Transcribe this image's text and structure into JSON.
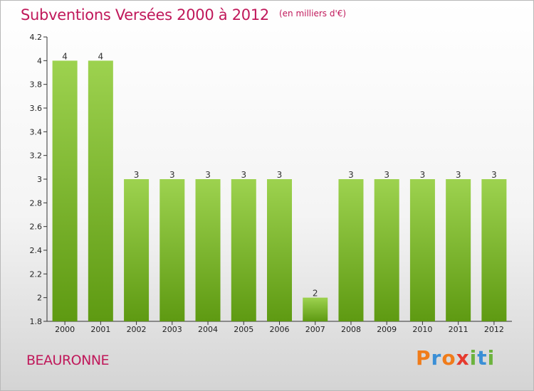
{
  "header": {
    "title": "Subventions Versées 2000 à 2012",
    "subtitle": "(en milliers d'€)"
  },
  "footer": {
    "commune": "BEAURONNE",
    "logo_text": "Proxiti"
  },
  "colors": {
    "title": "#c0185a",
    "bar_light": "#9dd24f",
    "bar_dark": "#5e9a12"
  },
  "chart_data": {
    "type": "bar",
    "title": "Subventions Versées 2000 à 2012",
    "subtitle": "(en milliers d'€)",
    "categories": [
      "2000",
      "2001",
      "2002",
      "2003",
      "2004",
      "2005",
      "2006",
      "2007",
      "2008",
      "2009",
      "2010",
      "2011",
      "2012"
    ],
    "values": [
      4,
      4,
      3,
      3,
      3,
      3,
      3,
      2,
      3,
      3,
      3,
      3,
      3
    ],
    "data_labels": [
      "4",
      "4",
      "3",
      "3",
      "3",
      "3",
      "3",
      "2",
      "3",
      "3",
      "3",
      "3",
      "3"
    ],
    "ylim": [
      1.8,
      4.2
    ],
    "yticks": [
      1.8,
      2,
      2.2,
      2.4,
      2.6,
      2.8,
      3,
      3.2,
      3.4,
      3.6,
      3.8,
      4,
      4.2
    ],
    "ytick_labels": [
      "1.8",
      "2",
      "2.2",
      "2.4",
      "2.6",
      "2.8",
      "3",
      "3.2",
      "3.4",
      "3.6",
      "3.8",
      "4",
      "4.2"
    ],
    "grid": false,
    "legend": "none"
  }
}
